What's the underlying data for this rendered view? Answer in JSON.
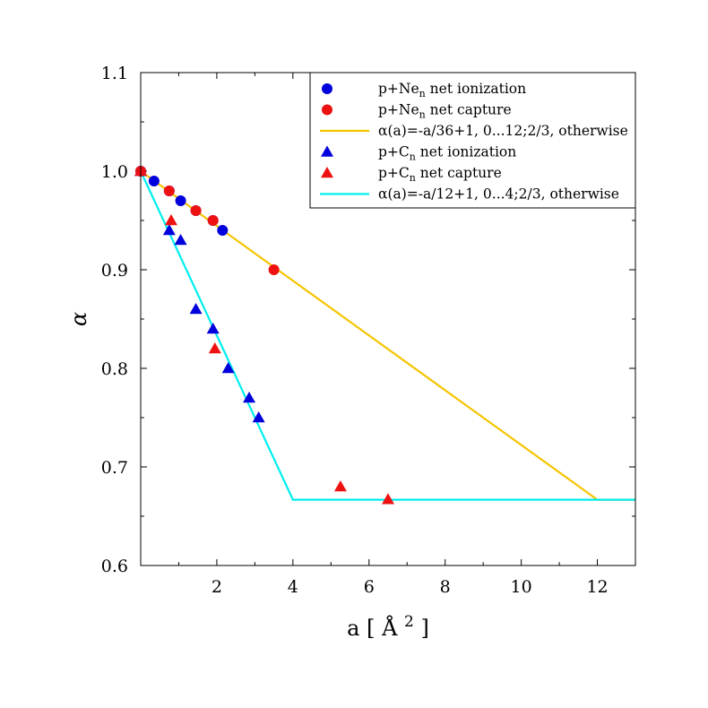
{
  "chart_data": {
    "type": "scatter",
    "xlabel": "a",
    "xlabel_unit_symbol": "Å",
    "xlabel_unit_exponent": "2",
    "ylabel": "α",
    "xlim": [
      0,
      13
    ],
    "ylim": [
      0.6,
      1.1
    ],
    "xticks": [
      2,
      4,
      6,
      8,
      10,
      12
    ],
    "xtick_labels": [
      "2",
      "4",
      "6",
      "8",
      "10",
      "12"
    ],
    "yticks": [
      0.6,
      0.7,
      0.8,
      0.9,
      1.0,
      1.1
    ],
    "ytick_labels": [
      "0.6",
      "0.7",
      "0.8",
      "0.9",
      "1.0",
      "1.1"
    ],
    "grid": false,
    "legend_position": "top-right",
    "series": [
      {
        "name": "p+Ne_n net ionization",
        "legend_main": "p+Ne",
        "legend_sub": "n",
        "legend_rest": " net ionization",
        "marker": "circle",
        "color": "#0000dd",
        "x": [
          0.0,
          0.35,
          0.75,
          1.05,
          1.45,
          1.9,
          2.15
        ],
        "y": [
          1.0,
          0.99,
          0.98,
          0.97,
          0.96,
          0.95,
          0.94
        ]
      },
      {
        "name": "p+Ne_n net capture",
        "legend_main": "p+Ne",
        "legend_sub": "n",
        "legend_rest": " net capture",
        "marker": "circle",
        "color": "#ee1111",
        "x": [
          0.0,
          0.75,
          1.45,
          1.9,
          3.5
        ],
        "y": [
          1.0,
          0.98,
          0.96,
          0.95,
          0.9
        ]
      },
      {
        "name": "α(a)=-a/36+1, 0...12;2/3, otherwise",
        "legend_main": "α(a)=-a/36+1, 0...12;2/3, otherwise",
        "marker": "line",
        "color": "#f5c400",
        "x": [
          0,
          12,
          13
        ],
        "y": [
          1.0,
          0.6667,
          0.6667
        ]
      },
      {
        "name": "p+C_n net ionization",
        "legend_main": "p+C",
        "legend_sub": "n",
        "legend_rest": " net ionization",
        "marker": "triangle",
        "color": "#0000dd",
        "x": [
          0.0,
          0.75,
          1.05,
          1.45,
          1.9,
          2.3,
          2.85,
          3.1
        ],
        "y": [
          1.0,
          0.94,
          0.93,
          0.86,
          0.84,
          0.8,
          0.77,
          0.75
        ]
      },
      {
        "name": "p+C_n net capture",
        "legend_main": "p+C",
        "legend_sub": "n",
        "legend_rest": " net capture",
        "marker": "triangle",
        "color": "#ee1111",
        "x": [
          0.0,
          0.8,
          1.95,
          5.25,
          6.5
        ],
        "y": [
          1.0,
          0.95,
          0.82,
          0.68,
          0.667
        ]
      },
      {
        "name": "α(a)=-a/12+1, 0...4;2/3, otherwise",
        "legend_main": "α(a)=-a/12+1, 0...4;2/3, otherwise",
        "marker": "line",
        "color": "#00eeee",
        "x": [
          0,
          4,
          13
        ],
        "y": [
          1.0,
          0.6667,
          0.6667
        ]
      }
    ]
  }
}
